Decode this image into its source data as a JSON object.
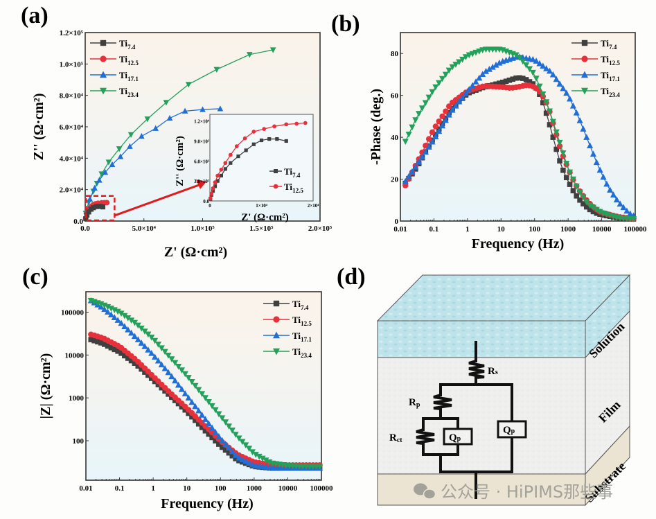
{
  "figure": {
    "panels": [
      "(a)",
      "(b)",
      "(c)",
      "(d)"
    ],
    "watermark": "公众号 · HiPIMS那些事"
  },
  "colors": {
    "Ti7.4": "#3f3f3f",
    "Ti12.5": "#e8303a",
    "Ti17.1": "#1f6fd6",
    "Ti23.4": "#23a05a",
    "zoom_box": "#e01b1b"
  },
  "chart_data": [
    {
      "id": "a",
      "type": "scatter",
      "title": "",
      "xlabel": "Z' (Ω·cm²)",
      "ylabel": "Z'' (Ω·cm²)",
      "xlim": [
        0,
        200000
      ],
      "ylim": [
        0,
        120000
      ],
      "xticks": [
        "0.0",
        "5.0×10⁴",
        "1.0×10⁵",
        "1.5×10⁵",
        "2.0×10⁵"
      ],
      "yticks": [
        "0.0",
        "2.0×10⁴",
        "4.0×10⁴",
        "6.0×10⁴",
        "8.0×10⁴",
        "1.0×10⁵",
        "1.2×10⁵"
      ],
      "legend": "top-left",
      "series": [
        {
          "name": "Ti7.4",
          "base": "Ti",
          "sub": "7.4",
          "marker": "square",
          "x": [
            500,
            1500,
            3000,
            5000,
            7000,
            9500,
            11500,
            13000,
            15000
          ],
          "y": [
            1500,
            3800,
            5800,
            7500,
            8500,
            9200,
            9300,
            9300,
            9000
          ]
        },
        {
          "name": "Ti12.5",
          "base": "Ti",
          "sub": "12.5",
          "marker": "circle",
          "x": [
            400,
            1200,
            2500,
            4000,
            5500,
            7000,
            9000,
            11000,
            14000,
            16500,
            18500
          ],
          "y": [
            1800,
            4500,
            6700,
            8200,
            9500,
            10500,
            11000,
            11300,
            11600,
            11700,
            11700
          ]
        },
        {
          "name": "Ti17.1",
          "base": "Ti",
          "sub": "17.1",
          "marker": "triangle-up",
          "x": [
            1000,
            4000,
            8000,
            12000,
            17000,
            23000,
            30000,
            38000,
            48000,
            60000,
            72000,
            85000,
            100000,
            115000
          ],
          "y": [
            6000,
            14000,
            21000,
            26000,
            31000,
            36000,
            41000,
            47500,
            54000,
            59000,
            65500,
            70000,
            71000,
            71500
          ]
        },
        {
          "name": "Ti23.4",
          "base": "Ti",
          "sub": "23.4",
          "marker": "triangle-down",
          "x": [
            500,
            3000,
            7000,
            10000,
            14000,
            20000,
            29000,
            39000,
            53000,
            69000,
            88000,
            112000,
            140000,
            160000
          ],
          "y": [
            5000,
            12000,
            19000,
            24000,
            30000,
            37500,
            46000,
            55000,
            65000,
            75500,
            87000,
            96500,
            106000,
            109000
          ]
        }
      ],
      "inset": {
        "xlabel": "Z' (Ω·cm²)",
        "ylabel": "Z'' (Ω·cm²)",
        "xlim": [
          0,
          20000
        ],
        "ylim": [
          0,
          13000
        ],
        "xticks": [
          "0",
          "1×10⁴",
          "2×10⁴"
        ],
        "yticks": [
          "0.0",
          "3.0×10³",
          "6.0×10³",
          "9.0×10³",
          "1.2×10⁴"
        ],
        "legend": "bottom-right",
        "series": [
          {
            "name": "Ti7.4",
            "base": "Ti",
            "sub": "7.4",
            "marker": "square",
            "x": [
              100,
              300,
              600,
              1000,
              1500,
              2200,
              3000,
              4000,
              5500,
              7000,
              8500,
              10000,
              11500,
              13000,
              14800
            ],
            "y": [
              300,
              900,
              1500,
              2200,
              3000,
              3800,
              4800,
              5700,
              6700,
              7600,
              8500,
              9100,
              9300,
              9300,
              9000
            ]
          },
          {
            "name": "Ti12.5",
            "base": "Ti",
            "sub": "12.5",
            "marker": "circle",
            "x": [
              100,
              300,
              600,
              1000,
              1500,
              2200,
              3000,
              4000,
              5200,
              6800,
              8500,
              10500,
              12500,
              14800,
              16800,
              18500
            ],
            "y": [
              400,
              1100,
              1900,
              2800,
              3800,
              4700,
              5700,
              6900,
              8200,
              9400,
              10400,
              10800,
              11200,
              11500,
              11600,
              11700
            ]
          }
        ]
      }
    },
    {
      "id": "b",
      "type": "scatter",
      "title": "",
      "xlabel": "Frequency (Hz)",
      "ylabel": "-Phase (deg.)",
      "xscale": "log",
      "xlim": [
        0.01,
        100000
      ],
      "ylim": [
        0,
        90
      ],
      "xticks": [
        "0.01",
        "0.1",
        "1",
        "10",
        "100",
        "1000",
        "10000",
        "100000"
      ],
      "yticks": [
        "0",
        "20",
        "40",
        "60",
        "80"
      ],
      "legend": "top-right",
      "series": [
        {
          "name": "Ti7.4",
          "base": "Ti",
          "sub": "7.4",
          "marker": "square",
          "logf": [
            -1.85,
            -1.5,
            -1,
            -0.5,
            0,
            0.5,
            1,
            1.3,
            1.5,
            1.7,
            2,
            2.2,
            2.4,
            2.6,
            2.8,
            3,
            3.2,
            3.4,
            3.6,
            3.8,
            4,
            4.5,
            5
          ],
          "y": [
            18,
            26,
            40,
            53,
            61,
            64,
            66,
            67.5,
            68.5,
            68,
            65,
            59,
            49,
            37,
            26,
            19,
            13,
            9,
            6,
            4,
            3,
            1.5,
            1
          ]
        },
        {
          "name": "Ti12.5",
          "base": "Ti",
          "sub": "12.5",
          "marker": "circle",
          "logf": [
            -1.85,
            -1.5,
            -1,
            -0.5,
            0,
            0.5,
            1,
            1.3,
            1.5,
            1.8,
            2,
            2.2,
            2.4,
            2.6,
            2.8,
            3,
            3.2,
            3.4,
            3.6,
            3.8,
            4,
            4.5,
            5
          ],
          "y": [
            17,
            28,
            44,
            56,
            62,
            64.5,
            64,
            63.5,
            64,
            65,
            64,
            61,
            55,
            44,
            33,
            25,
            18,
            13,
            9,
            6,
            4,
            2,
            1
          ]
        },
        {
          "name": "Ti17.1",
          "base": "Ti",
          "sub": "17.1",
          "marker": "triangle-up",
          "logf": [
            -1.85,
            -1.5,
            -1,
            -0.5,
            0,
            0.5,
            1,
            1.5,
            2,
            2.5,
            3,
            3.3,
            3.6,
            3.9,
            4.2,
            4.5,
            4.8,
            5
          ],
          "y": [
            19,
            27,
            39,
            52,
            62,
            71,
            76,
            78.5,
            77,
            71,
            60,
            50,
            38,
            26,
            16,
            9,
            4,
            2
          ]
        },
        {
          "name": "Ti23.4",
          "base": "Ti",
          "sub": "23.4",
          "marker": "triangle-down",
          "logf": [
            -1.85,
            -1.5,
            -1,
            -0.5,
            0,
            0.5,
            1,
            1.5,
            2,
            2.4,
            2.7,
            3,
            3.3,
            3.6,
            4,
            4.5,
            5
          ],
          "y": [
            38,
            50,
            63,
            73,
            79,
            82,
            82,
            79,
            70,
            55,
            40,
            25,
            15,
            8,
            4,
            1.5,
            1
          ]
        }
      ]
    },
    {
      "id": "c",
      "type": "scatter",
      "title": "",
      "xlabel": "Frequency (Hz)",
      "ylabel": "|Z| (Ω·cm²)",
      "xscale": "log",
      "yscale": "log",
      "xlim": [
        0.01,
        100000
      ],
      "ylim": [
        12,
        300000
      ],
      "xticks": [
        "0.01",
        "0.1",
        "1",
        "10",
        "100",
        "1000",
        "10000",
        "100000"
      ],
      "yticks": [
        "100",
        "1000",
        "10000",
        "100000"
      ],
      "legend": "top-right",
      "series": [
        {
          "name": "Ti7.4",
          "base": "Ti",
          "sub": "7.4",
          "marker": "square",
          "logf": [
            -1.85,
            -1.5,
            -1,
            -0.5,
            0,
            0.5,
            1,
            1.5,
            2,
            2.5,
            3,
            3.5,
            4,
            4.5,
            5
          ],
          "logz": [
            4.36,
            4.27,
            4.07,
            3.78,
            3.42,
            3.05,
            2.68,
            2.27,
            1.88,
            1.55,
            1.4,
            1.36,
            1.36,
            1.36,
            1.36
          ]
        },
        {
          "name": "Ti12.5",
          "base": "Ti",
          "sub": "12.5",
          "marker": "circle",
          "logf": [
            -1.85,
            -1.5,
            -1,
            -0.5,
            0,
            0.5,
            1,
            1.5,
            2,
            2.5,
            3,
            3.5,
            4,
            4.5,
            5
          ],
          "logz": [
            4.48,
            4.4,
            4.2,
            3.88,
            3.5,
            3.12,
            2.76,
            2.38,
            2.0,
            1.68,
            1.5,
            1.44,
            1.43,
            1.43,
            1.43
          ]
        },
        {
          "name": "Ti17.1",
          "base": "Ti",
          "sub": "17.1",
          "marker": "triangle-up",
          "logf": [
            -1.85,
            -1.5,
            -1,
            -0.5,
            0,
            0.5,
            1,
            1.5,
            2,
            2.5,
            3,
            3.5,
            4,
            4.5,
            5
          ],
          "logz": [
            5.27,
            5.1,
            4.78,
            4.4,
            4.0,
            3.55,
            3.05,
            2.55,
            2.05,
            1.62,
            1.42,
            1.37,
            1.36,
            1.36,
            1.36
          ]
        },
        {
          "name": "Ti23.4",
          "base": "Ti",
          "sub": "23.4",
          "marker": "triangle-down",
          "logf": [
            -1.85,
            -1.5,
            -1,
            -0.5,
            0,
            0.5,
            1,
            1.5,
            2,
            2.5,
            3,
            3.5,
            4,
            4.5,
            5
          ],
          "logz": [
            5.27,
            5.18,
            5.0,
            4.73,
            4.38,
            3.95,
            3.52,
            3.05,
            2.58,
            2.1,
            1.7,
            1.48,
            1.42,
            1.4,
            1.4
          ]
        }
      ]
    }
  ],
  "diagram": {
    "layers": [
      "Solution",
      "Film",
      "Substrate"
    ],
    "components": [
      {
        "label": "R",
        "sub": "s"
      },
      {
        "label": "R",
        "sub": "p"
      },
      {
        "label": "R",
        "sub": "ct"
      },
      {
        "label": "Q",
        "sub": "p"
      },
      {
        "label": "Q",
        "sub": "p"
      }
    ]
  }
}
